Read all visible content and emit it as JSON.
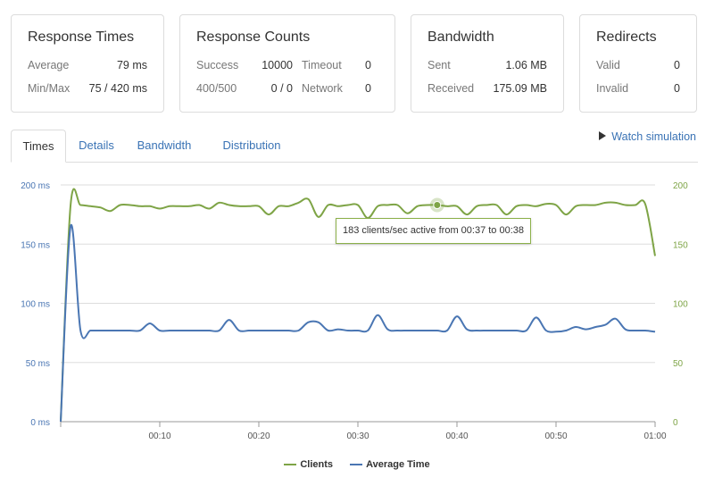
{
  "cards": {
    "response_times": {
      "title": "Response Times",
      "rows": [
        {
          "label": "Average",
          "value": "79 ms"
        },
        {
          "label": "Min/Max",
          "value": "75 / 420 ms"
        }
      ]
    },
    "response_counts": {
      "title": "Response Counts",
      "rows": [
        {
          "label": "Success",
          "value": "10000",
          "label2": "Timeout",
          "value2": "0"
        },
        {
          "label": "400/500",
          "value": "0 / 0",
          "label2": "Network",
          "value2": "0"
        }
      ]
    },
    "bandwidth": {
      "title": "Bandwidth",
      "rows": [
        {
          "label": "Sent",
          "value": "1.06 MB"
        },
        {
          "label": "Received",
          "value": "175.09 MB"
        }
      ]
    },
    "redirects": {
      "title": "Redirects",
      "rows": [
        {
          "label": "Valid",
          "value": "0"
        },
        {
          "label": "Invalid",
          "value": "0"
        }
      ]
    }
  },
  "tabs": [
    "Times",
    "Details",
    "Bandwidth",
    "Distribution"
  ],
  "active_tab": "Times",
  "watch_simulation": "Watch simulation",
  "watch_icon": "play-icon",
  "tooltip": "183 clients/sec active from 00:37 to 00:38",
  "colors": {
    "clients": "#7ea446",
    "average_time": "#4a76b3",
    "link": "#3a73b5",
    "grid": "#dddddd"
  },
  "chart_data": {
    "type": "line",
    "x_ticks": [
      "00:10",
      "00:20",
      "00:30",
      "00:40",
      "00:50",
      "01:00"
    ],
    "x_tick_values": [
      10,
      20,
      30,
      40,
      50,
      60
    ],
    "xlim": [
      0,
      60
    ],
    "y_left_ticks": [
      "0 ms",
      "50 ms",
      "100 ms",
      "150 ms",
      "200 ms"
    ],
    "y_right_ticks": [
      "0",
      "50",
      "100",
      "150",
      "200"
    ],
    "y_tick_values": [
      0,
      50,
      100,
      150,
      200
    ],
    "ylim": [
      0,
      200
    ],
    "grid": true,
    "legend_position": "bottom",
    "x": [
      0,
      1,
      2,
      3,
      4,
      5,
      6,
      7,
      8,
      9,
      10,
      11,
      12,
      13,
      14,
      15,
      16,
      17,
      18,
      19,
      20,
      21,
      22,
      23,
      24,
      25,
      26,
      27,
      28,
      29,
      30,
      31,
      32,
      33,
      34,
      35,
      36,
      37,
      38,
      39,
      40,
      41,
      42,
      43,
      44,
      45,
      46,
      47,
      48,
      49,
      50,
      51,
      52,
      53,
      54,
      55,
      56,
      57,
      58,
      59,
      60
    ],
    "series": [
      {
        "name": "Clients",
        "values": [
          0,
          183,
          183,
          182,
          181,
          178,
          183,
          183,
          182,
          182,
          180,
          182,
          182,
          182,
          183,
          180,
          185,
          183,
          182,
          182,
          182,
          175,
          182,
          182,
          185,
          188,
          173,
          183,
          182,
          183,
          183,
          172,
          182,
          183,
          183,
          176,
          182,
          183,
          183,
          182,
          182,
          175,
          182,
          183,
          183,
          175,
          182,
          183,
          182,
          184,
          183,
          175,
          182,
          183,
          183,
          185,
          185,
          183,
          183,
          184,
          140
        ]
      },
      {
        "name": "Average Time",
        "values": [
          0,
          165,
          77,
          77,
          77,
          77,
          77,
          77,
          77,
          83,
          77,
          77,
          77,
          77,
          77,
          77,
          77,
          86,
          77,
          77,
          77,
          77,
          77,
          77,
          77,
          84,
          84,
          77,
          78,
          77,
          77,
          77,
          90,
          78,
          77,
          77,
          77,
          77,
          77,
          77,
          89,
          78,
          77,
          77,
          77,
          77,
          77,
          77,
          88,
          77,
          76,
          77,
          80,
          78,
          80,
          82,
          87,
          78,
          77,
          77,
          76
        ]
      }
    ]
  }
}
